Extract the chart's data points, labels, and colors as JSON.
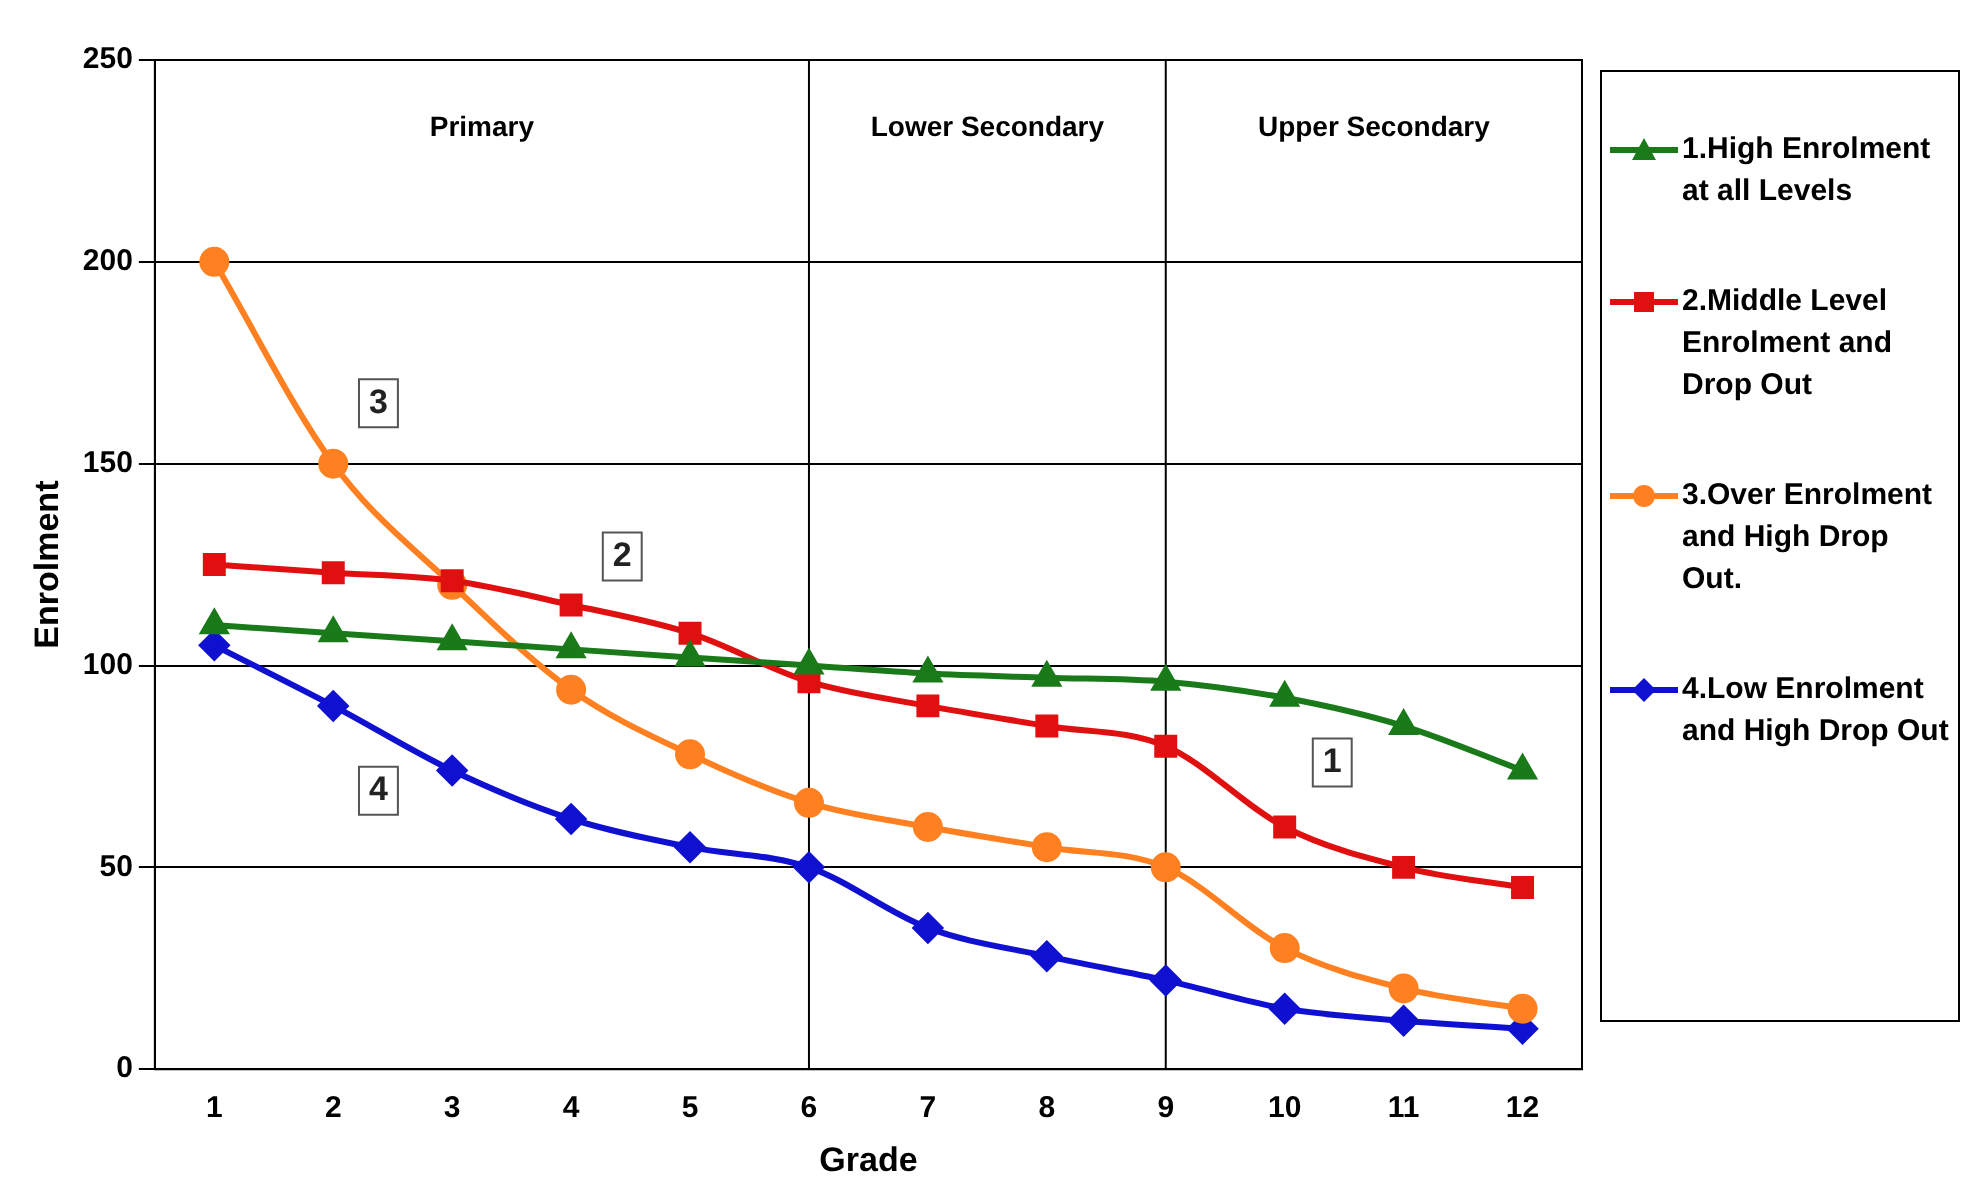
{
  "chart_data": {
    "type": "line",
    "xlabel": "Grade",
    "ylabel": "Enrolment",
    "x": [
      1,
      2,
      3,
      4,
      5,
      6,
      7,
      8,
      9,
      10,
      11,
      12
    ],
    "xlim": [
      0.5,
      12.5
    ],
    "xticks": [
      1,
      2,
      3,
      4,
      5,
      6,
      7,
      8,
      9,
      10,
      11,
      12
    ],
    "ylim": [
      0,
      250
    ],
    "yticks": [
      0,
      50,
      100,
      150,
      200,
      250
    ],
    "grid": "y",
    "legend": "right",
    "series": [
      {
        "name": "1.High Enrolment at all Levels",
        "color": "#1a7a1a",
        "marker": "triangle",
        "values": [
          110,
          108,
          106,
          104,
          102,
          100,
          98,
          97,
          96,
          92,
          85,
          74
        ]
      },
      {
        "name": "2.Middle Level Enrolment and Drop Out",
        "color": "#e01010",
        "marker": "square",
        "values": [
          125,
          123,
          121,
          115,
          108,
          96,
          90,
          85,
          80,
          60,
          50,
          45
        ]
      },
      {
        "name": "3.Over Enrolment and High Drop Out.",
        "color": "#ff8020",
        "marker": "circle",
        "values": [
          200,
          150,
          120,
          94,
          78,
          66,
          60,
          55,
          50,
          30,
          20,
          15
        ]
      },
      {
        "name": "4.Low Enrolment and High Drop Out",
        "color": "#1010d0",
        "marker": "diamond",
        "values": [
          105,
          90,
          74,
          62,
          55,
          50,
          35,
          28,
          22,
          15,
          12,
          10
        ]
      }
    ],
    "ref_lines": [
      {
        "axis": "x",
        "value": 6,
        "color": "#000000"
      },
      {
        "axis": "x",
        "value": 9,
        "color": "#000000"
      }
    ],
    "annotations": [
      "Primary",
      "Lower Secondary",
      "Upper Secondary",
      {
        "text": "3",
        "x": 2.38,
        "y": 165
      },
      {
        "text": "2",
        "x": 4.43,
        "y": 127
      },
      {
        "text": "4",
        "x": 2.38,
        "y": 69
      },
      {
        "text": "1",
        "x": 10.4,
        "y": 76
      }
    ]
  }
}
